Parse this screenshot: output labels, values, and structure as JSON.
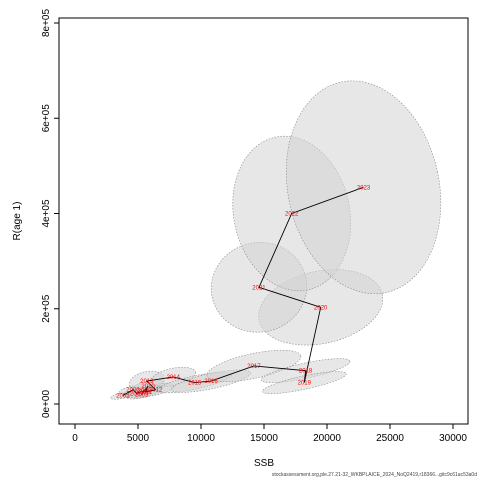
{
  "chart_data": {
    "type": "scatter",
    "xlabel": "SSB",
    "ylabel": "R(age 1)",
    "xlim": [
      0,
      30000
    ],
    "ylim": [
      0,
      800000
    ],
    "x_ticks": [
      0,
      5000,
      10000,
      15000,
      20000,
      25000,
      30000
    ],
    "y_ticks": [
      0,
      200000,
      400000,
      600000,
      800000
    ],
    "x_tick_labels": [
      "0",
      "5000",
      "10000",
      "15000",
      "20000",
      "25000",
      "30000"
    ],
    "y_tick_labels": [
      "0e+00",
      "2e+05",
      "4e+05",
      "6e+05",
      "8e+05"
    ],
    "series": [
      {
        "type": "path",
        "color": "#000000",
        "label_color": "#ff0000",
        "points": [
          {
            "label": "2005",
            "x": 3800,
            "y": 18000,
            "sdx": 500,
            "sdy": 3000
          },
          {
            "label": "2006",
            "x": 4600,
            "y": 30000,
            "sdx": 550,
            "sdy": 4000
          },
          {
            "label": "2007",
            "x": 4900,
            "y": 22000,
            "sdx": 500,
            "sdy": 3500
          },
          {
            "label": "2008",
            "x": 5500,
            "y": 28000,
            "sdx": 600,
            "sdy": 4000
          },
          {
            "label": "2009",
            "x": 5300,
            "y": 20000,
            "sdx": 600,
            "sdy": 3500
          },
          {
            "label": "2010",
            "x": 5800,
            "y": 38000,
            "sdx": 650,
            "sdy": 5000
          },
          {
            "label": "2011",
            "x": 5600,
            "y": 25000,
            "sdx": 700,
            "sdy": 5000
          },
          {
            "label": "2012",
            "x": 6400,
            "y": 30000,
            "sdx": 750,
            "sdy": 5500
          },
          {
            "label": "2013",
            "x": 5700,
            "y": 48000,
            "sdx": 700,
            "sdy": 10000
          },
          {
            "label": "2014",
            "x": 7800,
            "y": 57000,
            "sdx": 900,
            "sdy": 9000
          },
          {
            "label": "2015",
            "x": 9500,
            "y": 45000,
            "sdx": 1500,
            "sdy": 7000
          },
          {
            "label": "2016",
            "x": 10800,
            "y": 48000,
            "sdx": 1600,
            "sdy": 8000
          },
          {
            "label": "2017",
            "x": 14200,
            "y": 80000,
            "sdx": 1900,
            "sdy": 13000
          },
          {
            "label": "2018",
            "x": 18300,
            "y": 70000,
            "sdx": 1800,
            "sdy": 8000
          },
          {
            "label": "2019",
            "x": 18200,
            "y": 45000,
            "sdx": 1700,
            "sdy": 7000
          },
          {
            "label": "2020",
            "x": 19500,
            "y": 203000,
            "sdx": 2500,
            "sdy": 38000
          },
          {
            "label": "2021",
            "x": 14600,
            "y": 245000,
            "sdx": 1900,
            "sdy": 47000
          },
          {
            "label": "2022",
            "x": 17200,
            "y": 400000,
            "sdx": 2300,
            "sdy": 82000
          },
          {
            "label": "2023",
            "x": 22900,
            "y": 455000,
            "sdx": 3000,
            "sdy": 113000
          }
        ]
      }
    ],
    "grid": false,
    "legend": "none",
    "ellipse_fill": "#d3d3d3",
    "ellipse_stroke": "#888888"
  },
  "footer_text": "stockassessment.org,ple.27.21-32_WKBPLAICE_2024_NoQ2419,r18366...gitc9c61ac53a0d"
}
